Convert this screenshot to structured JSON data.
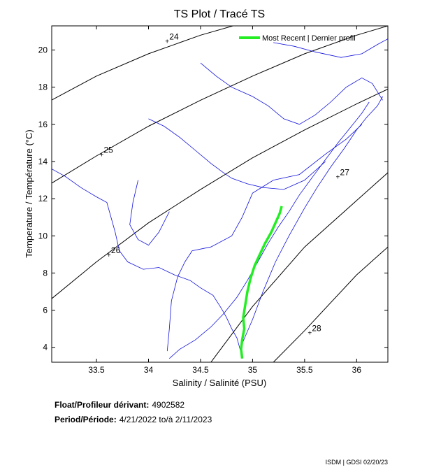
{
  "chart_data": {
    "type": "line",
    "title": "TS Plot / Tracé TS",
    "xlabel": "Salinity / Salinité (PSU)",
    "ylabel": "Temperature / Température (°C)",
    "xlim": [
      33.07,
      36.3
    ],
    "ylim": [
      3.2,
      21.3
    ],
    "x_ticks": [
      "33.5",
      "34",
      "34.5",
      "35",
      "35.5",
      "36"
    ],
    "y_ticks": [
      "4",
      "6",
      "8",
      "10",
      "12",
      "14",
      "16",
      "18",
      "20"
    ],
    "isopycnals": [
      "24",
      "25",
      "26",
      "27",
      "28"
    ],
    "legend": {
      "label": "Most Recent | Dernier profil",
      "color": "#22ee22",
      "position": "top-right"
    },
    "series": [
      {
        "color": "#1010dd",
        "points": [
          [
            33.07,
            13.6
          ],
          [
            33.2,
            13.2
          ],
          [
            33.35,
            12.6
          ],
          [
            33.5,
            12.1
          ],
          [
            33.6,
            11.8
          ],
          [
            33.68,
            10.2
          ],
          [
            33.72,
            9.2
          ],
          [
            33.8,
            8.6
          ],
          [
            33.95,
            8.2
          ],
          [
            34.1,
            8.3
          ],
          [
            34.25,
            7.9
          ],
          [
            34.4,
            7.6
          ],
          [
            34.5,
            7.2
          ],
          [
            34.62,
            6.8
          ],
          [
            34.7,
            6.1
          ],
          [
            34.75,
            5.6
          ],
          [
            34.8,
            5.0
          ],
          [
            34.85,
            4.5
          ],
          [
            34.88,
            3.9
          ],
          [
            34.9,
            3.4
          ]
        ]
      },
      {
        "color": "#1010dd",
        "points": [
          [
            34.2,
            3.4
          ],
          [
            34.3,
            3.9
          ],
          [
            34.45,
            4.4
          ],
          [
            34.6,
            5.1
          ],
          [
            34.72,
            5.8
          ],
          [
            34.85,
            6.7
          ],
          [
            34.95,
            7.6
          ],
          [
            35.05,
            8.6
          ],
          [
            35.15,
            9.6
          ],
          [
            35.25,
            10.5
          ],
          [
            35.35,
            11.3
          ],
          [
            35.45,
            12.2
          ],
          [
            35.58,
            13.2
          ],
          [
            35.7,
            14.1
          ],
          [
            35.82,
            15.0
          ],
          [
            35.95,
            15.9
          ],
          [
            36.05,
            16.6
          ],
          [
            36.12,
            17.2
          ]
        ]
      },
      {
        "color": "#1010dd",
        "points": [
          [
            34.9,
            4.2
          ],
          [
            35.0,
            5.5
          ],
          [
            35.1,
            7.0
          ],
          [
            35.22,
            8.6
          ],
          [
            35.35,
            10.0
          ],
          [
            35.5,
            11.5
          ],
          [
            35.62,
            12.6
          ],
          [
            35.75,
            13.7
          ],
          [
            35.88,
            14.7
          ],
          [
            36.0,
            15.7
          ],
          [
            36.1,
            16.4
          ],
          [
            36.2,
            17.0
          ],
          [
            36.25,
            17.5
          ]
        ]
      },
      {
        "color": "#1010dd",
        "points": [
          [
            34.18,
            3.8
          ],
          [
            34.2,
            5.0
          ],
          [
            34.22,
            6.5
          ],
          [
            34.28,
            7.8
          ],
          [
            34.35,
            8.6
          ],
          [
            34.42,
            9.2
          ],
          [
            34.6,
            9.4
          ],
          [
            34.8,
            10.0
          ],
          [
            34.9,
            11.0
          ],
          [
            35.0,
            12.3
          ],
          [
            35.2,
            13.0
          ],
          [
            35.45,
            13.3
          ],
          [
            35.7,
            14.4
          ],
          [
            35.9,
            15.2
          ],
          [
            36.05,
            16.0
          ]
        ]
      },
      {
        "color": "#1010dd",
        "points": [
          [
            34.0,
            16.3
          ],
          [
            34.15,
            15.9
          ],
          [
            34.3,
            15.3
          ],
          [
            34.45,
            14.6
          ],
          [
            34.6,
            13.9
          ],
          [
            34.72,
            13.4
          ],
          [
            34.8,
            13.1
          ],
          [
            34.95,
            12.8
          ],
          [
            35.1,
            12.6
          ],
          [
            35.3,
            12.5
          ],
          [
            35.5,
            13.0
          ],
          [
            35.7,
            14.0
          ]
        ]
      },
      {
        "color": "#1010dd",
        "points": [
          [
            34.5,
            19.3
          ],
          [
            34.65,
            18.6
          ],
          [
            34.8,
            18.0
          ],
          [
            35.0,
            17.5
          ],
          [
            35.15,
            17.0
          ],
          [
            35.3,
            16.3
          ],
          [
            35.45,
            16.0
          ],
          [
            35.6,
            16.5
          ],
          [
            35.75,
            17.2
          ],
          [
            35.9,
            18.0
          ],
          [
            36.05,
            18.5
          ],
          [
            36.15,
            18.2
          ],
          [
            36.25,
            17.3
          ]
        ]
      },
      {
        "color": "#1010dd",
        "points": [
          [
            35.2,
            20.4
          ],
          [
            35.4,
            20.2
          ],
          [
            35.6,
            19.9
          ],
          [
            35.85,
            19.6
          ],
          [
            36.05,
            19.8
          ],
          [
            36.2,
            20.3
          ],
          [
            36.3,
            20.6
          ]
        ]
      },
      {
        "color": "#1010dd",
        "points": [
          [
            33.9,
            13.0
          ],
          [
            33.85,
            11.8
          ],
          [
            33.82,
            10.6
          ],
          [
            33.9,
            9.8
          ],
          [
            34.0,
            9.5
          ],
          [
            34.1,
            10.2
          ],
          [
            34.2,
            11.3
          ]
        ]
      }
    ],
    "most_recent": {
      "color": "#22ee22",
      "points": [
        [
          34.9,
          3.4
        ],
        [
          34.89,
          3.9
        ],
        [
          34.9,
          4.4
        ],
        [
          34.92,
          5.0
        ],
        [
          34.91,
          5.6
        ],
        [
          34.93,
          6.3
        ],
        [
          34.95,
          7.0
        ],
        [
          34.98,
          7.7
        ],
        [
          35.02,
          8.4
        ],
        [
          35.07,
          9.0
        ],
        [
          35.12,
          9.6
        ],
        [
          35.18,
          10.2
        ],
        [
          35.22,
          10.7
        ],
        [
          35.26,
          11.2
        ],
        [
          35.28,
          11.6
        ]
      ]
    }
  },
  "info": {
    "float_label": "Float/Profileur dérivant:",
    "float_value": "4902582",
    "period_label": "Period/Période:",
    "period_value": "4/21/2022  to/à  2/11/2023"
  },
  "footer": "ISDM | GDSI  02/20/23"
}
